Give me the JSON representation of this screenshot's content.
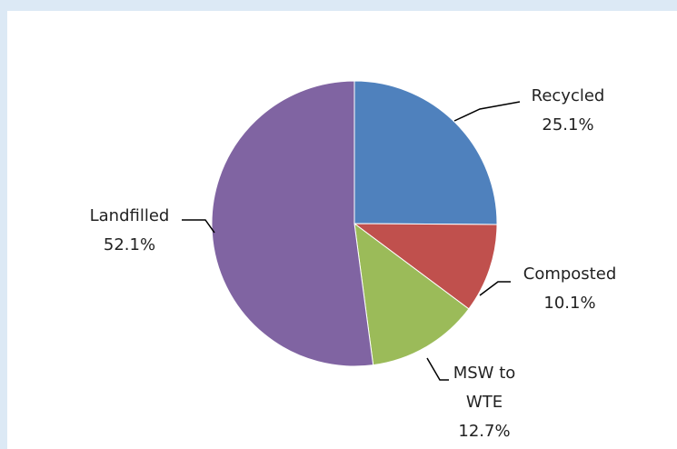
{
  "chart_data": {
    "type": "pie",
    "categories": [
      "Recycled",
      "Composted",
      "MSW to WTE",
      "Landfilled"
    ],
    "values": [
      25.1,
      10.1,
      12.7,
      52.1
    ],
    "value_labels": [
      "25.1%",
      "10.1%",
      "12.7%",
      "52.1%"
    ],
    "colors": [
      "#4f81bd",
      "#c0504d",
      "#9bbb59",
      "#8064a2"
    ]
  }
}
